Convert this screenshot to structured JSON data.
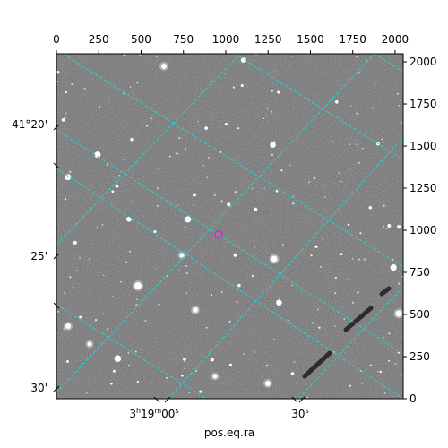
{
  "plot": {
    "x_pixel_axis": {
      "range": [
        0,
        2048
      ],
      "ticks": [
        0,
        250,
        500,
        750,
        1000,
        1250,
        1500,
        1750,
        2000
      ]
    },
    "y_pixel_axis": {
      "range": [
        0,
        2048
      ],
      "ticks": [
        0,
        250,
        500,
        750,
        1000,
        1250,
        1500,
        1750,
        2000
      ]
    },
    "bottom_xlabel": "pos.eq.ra",
    "ra_tick_labels": [
      {
        "text": "3h19m00s",
        "parts": [
          "3",
          "h",
          "19",
          "m",
          "00",
          "s"
        ]
      },
      {
        "text": "30s",
        "parts": [
          "30",
          "s"
        ]
      }
    ],
    "dec_tick_labels": [
      "41°20'",
      "25'",
      "30'"
    ],
    "background_color": "#6e6e6e",
    "grid_color": "#22d3d3",
    "marker_color": "#e020e0",
    "marker_center": [
      962,
      968
    ]
  }
}
